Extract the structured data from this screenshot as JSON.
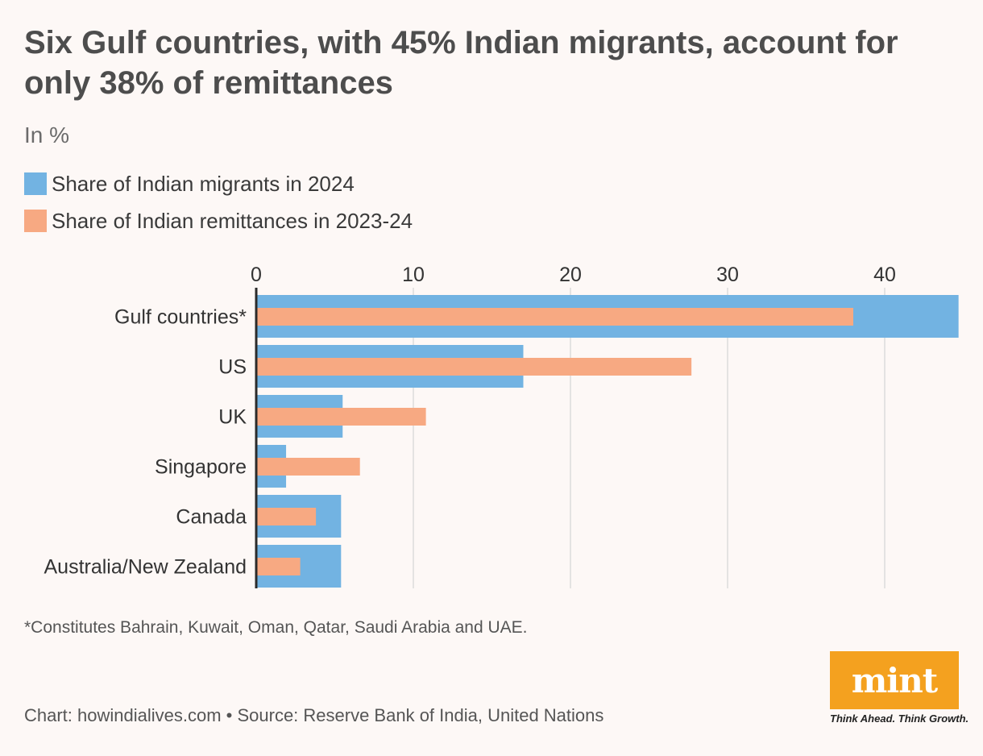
{
  "title": "Six Gulf countries, with 45% Indian migrants, account for only 38% of remittances",
  "subtitle": "In %",
  "footnote": "*Constitutes Bahrain, Kuwait, Oman, Qatar, Saudi Arabia and UAE.",
  "source": "Chart: howindialives.com • Source: Reserve Bank of India, United Nations",
  "logo": {
    "name": "mint",
    "tagline": "Think Ahead. Think Growth."
  },
  "colors": {
    "migrants": "#72b3e2",
    "remittances": "#f7a982",
    "axis": "#2b2b2b",
    "grid": "#dcdcdc",
    "brand": "#f4a11f"
  },
  "chart_data": {
    "type": "bar",
    "orientation": "horizontal",
    "categories": [
      "Gulf countries*",
      "US",
      "UK",
      "Singapore",
      "Canada",
      "Australia/New Zealand"
    ],
    "series": [
      {
        "name": "Share of Indian migrants in 2024",
        "values": [
          44.7,
          17.0,
          5.5,
          1.9,
          5.4,
          5.4
        ]
      },
      {
        "name": "Share of Indian remittances in 2023-24",
        "values": [
          38.0,
          27.7,
          10.8,
          6.6,
          3.8,
          2.8
        ]
      }
    ],
    "xlim": [
      0,
      44.7
    ],
    "xticks": [
      0,
      10,
      20,
      30,
      40
    ],
    "grid": true,
    "legend_position": "top-left"
  }
}
